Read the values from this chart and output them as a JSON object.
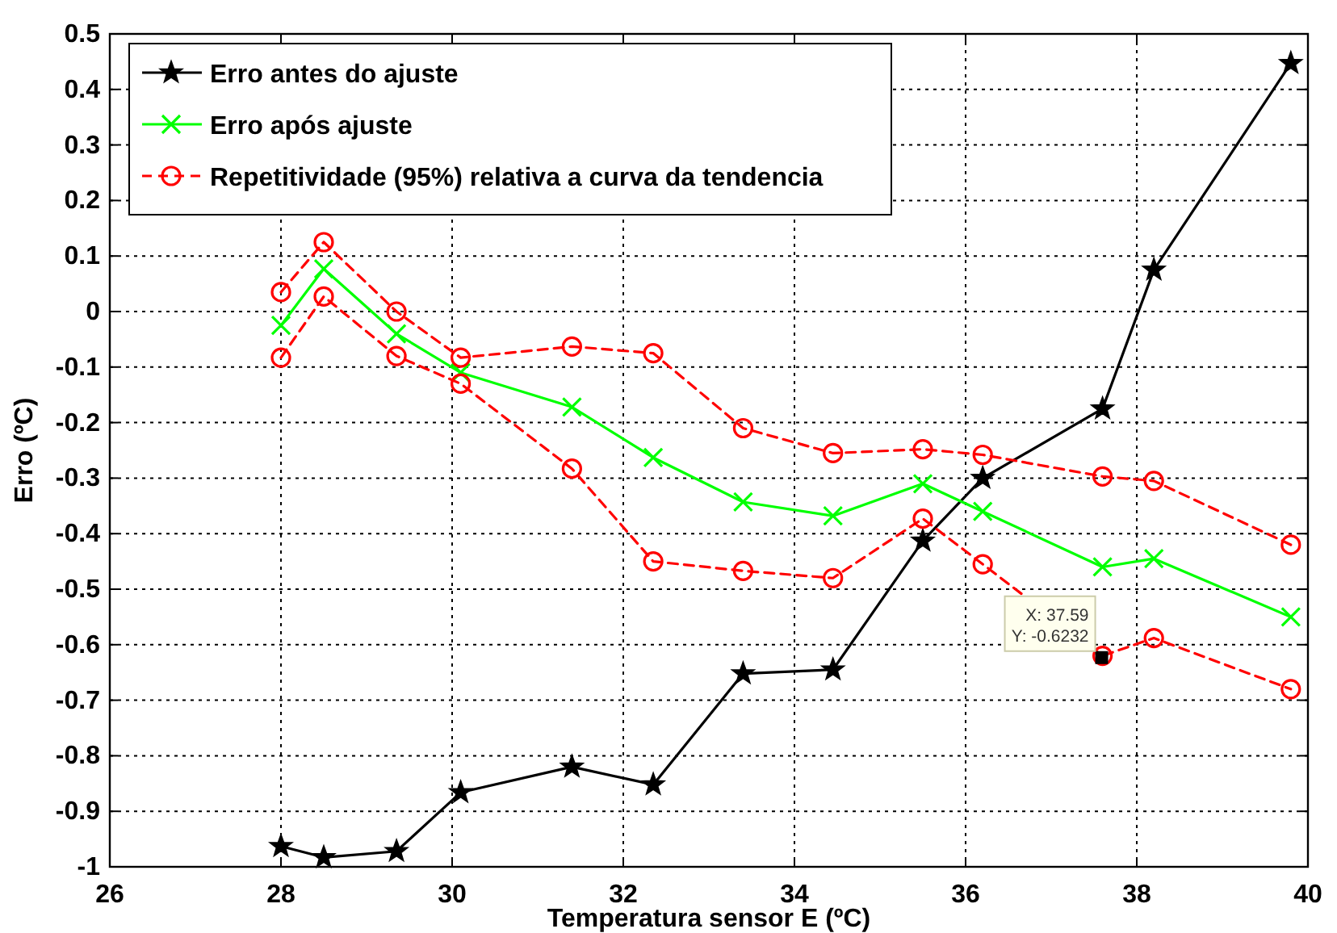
{
  "chart_data": {
    "type": "line",
    "xlabel": "Temperatura sensor E (ºC)",
    "ylabel": "Erro (ºC)",
    "x": [
      28.0,
      28.5,
      29.35,
      30.1,
      31.4,
      32.35,
      33.4,
      34.45,
      35.5,
      36.2,
      37.6,
      38.2,
      39.8
    ],
    "series": [
      {
        "name": "Erro antes do ajuste",
        "color": "#000000",
        "marker": "star",
        "line_style": "solid",
        "values": [
          -0.963,
          -0.983,
          -0.972,
          -0.866,
          -0.82,
          -0.852,
          -0.652,
          -0.645,
          -0.413,
          -0.3,
          -0.175,
          0.075,
          0.447
        ]
      },
      {
        "name": "Erro após ajuste",
        "color": "#00ff00",
        "marker": "cross",
        "line_style": "solid",
        "values": [
          -0.025,
          0.077,
          -0.04,
          -0.11,
          -0.172,
          -0.263,
          -0.343,
          -0.368,
          -0.31,
          -0.36,
          -0.46,
          -0.445,
          -0.55
        ]
      },
      {
        "name": "Repetitividade (95%) relativa a curva da tendencia",
        "color": "#ff0000",
        "marker": "circle",
        "line_style": "dashed",
        "values": [
          0.035,
          0.125,
          0.0,
          -0.083,
          -0.063,
          -0.075,
          -0.21,
          -0.255,
          -0.248,
          -0.258,
          -0.297,
          -0.305,
          -0.42
        ]
      },
      {
        "color": "#ff0000",
        "marker": "circle",
        "line_style": "dashed",
        "values": [
          -0.083,
          0.027,
          -0.08,
          -0.13,
          -0.283,
          -0.45,
          -0.467,
          -0.48,
          -0.373,
          -0.455,
          -0.62,
          -0.588,
          -0.68
        ]
      }
    ],
    "xlim": [
      26,
      40
    ],
    "xticks": [
      26,
      28,
      30,
      32,
      34,
      36,
      38,
      40
    ],
    "ylim": [
      -1,
      0.5
    ],
    "yticks": [
      -1,
      -0.9,
      -0.8,
      -0.7,
      -0.6,
      -0.5,
      -0.4,
      -0.3,
      -0.2,
      -0.1,
      0,
      0.1,
      0.2,
      0.3,
      0.4,
      0.5
    ],
    "grid": true,
    "legend": "top left",
    "annotations": [
      {
        "text": "X: 37.59\nY: -0.6232",
        "x": 37.59,
        "y": -0.6232
      }
    ]
  }
}
